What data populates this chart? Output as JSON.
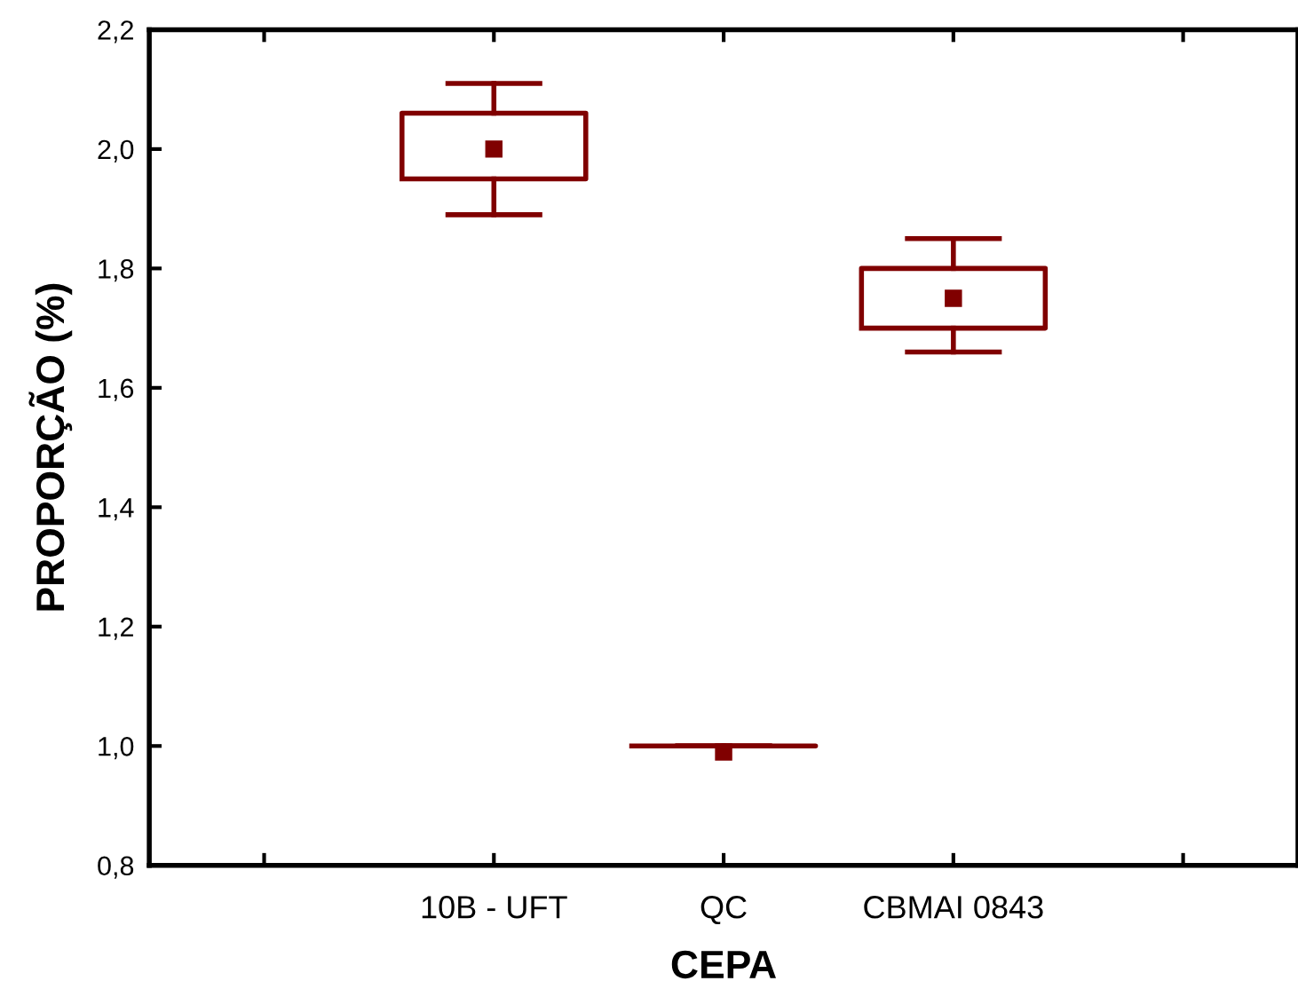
{
  "chart_data": {
    "type": "box",
    "xlabel": "CEPA",
    "ylabel": "PROPORÇÃO (%)",
    "categories": [
      null,
      "10B - UFT",
      "QC",
      "CBMAI 0843",
      null
    ],
    "boxes": [
      null,
      {
        "low": 1.89,
        "q1": 1.95,
        "median": 2.0,
        "q3": 2.06,
        "high": 2.11
      },
      {
        "low": 1.0,
        "q1": 1.0,
        "median": 0.99,
        "q3": 1.0,
        "high": 1.0
      },
      {
        "low": 1.66,
        "q1": 1.7,
        "median": 1.75,
        "q3": 1.8,
        "high": 1.85
      },
      null
    ],
    "color": "#800000",
    "marker": "square",
    "ylim": [
      0.8,
      2.2
    ],
    "yticks": [
      {
        "value": 0.8,
        "label": "0,8"
      },
      {
        "value": 1.0,
        "label": "1,0"
      },
      {
        "value": 1.2,
        "label": "1,2"
      },
      {
        "value": 1.4,
        "label": "1,4"
      },
      {
        "value": 1.6,
        "label": "1,6"
      },
      {
        "value": 1.8,
        "label": "1,8"
      },
      {
        "value": 2.0,
        "label": "2,0"
      },
      {
        "value": 2.2,
        "label": "2,2"
      }
    ],
    "grid": false,
    "legend": false
  }
}
